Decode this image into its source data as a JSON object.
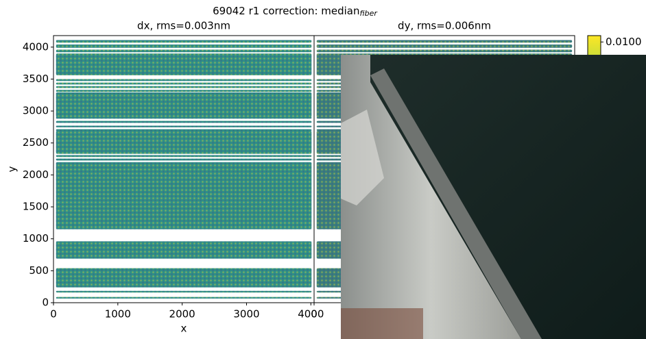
{
  "chart_data": {
    "type": "scatter",
    "title": "69042 r1  correction: median",
    "title_subscript": "fiber",
    "ylabel": "y",
    "colorbar": {
      "clim": [
        -0.0105,
        0.0105
      ],
      "ticks": [
        {
          "value": 0.01,
          "label": "0.0100"
        }
      ],
      "colors": [
        "#440154",
        "#3b528b",
        "#21918c",
        "#5ec962",
        "#fde725"
      ]
    },
    "panels": [
      {
        "title": "dx, rms=0.003nm",
        "xlabel": "x",
        "xlim": [
          0,
          4050
        ],
        "ylim": [
          0,
          4180
        ],
        "xticks": [
          0,
          1000,
          2000,
          3000,
          4000
        ],
        "yticks": [
          0,
          500,
          1000,
          1500,
          2000,
          2500,
          3000,
          3500,
          4000
        ],
        "color": "#2f8f86",
        "x_extent": [
          40,
          4010
        ],
        "row_bands": [
          [
            4070,
            4110
          ],
          [
            3990,
            4040
          ],
          [
            3920,
            3960
          ],
          [
            3560,
            3900
          ],
          [
            3470,
            3500
          ],
          [
            3415,
            3445
          ],
          [
            3360,
            3390
          ],
          [
            3300,
            3330
          ],
          [
            2900,
            3290
          ],
          [
            2880,
            2910
          ],
          [
            2815,
            2845
          ],
          [
            2745,
            2770
          ],
          [
            2690,
            2715
          ],
          [
            2330,
            2690
          ],
          [
            2280,
            2310
          ],
          [
            2225,
            2255
          ],
          [
            1150,
            2200
          ],
          [
            690,
            960
          ],
          [
            240,
            540
          ],
          [
            160,
            185
          ],
          [
            65,
            90
          ]
        ]
      },
      {
        "title": "dy, rms=0.006nm",
        "xlim": [
          0,
          4050
        ],
        "ylim": [
          0,
          4180
        ],
        "xticks": [
          0
        ],
        "color": "#3a7f7c",
        "x_extent": [
          40,
          4010
        ],
        "row_bands": [
          [
            4070,
            4110
          ],
          [
            3990,
            4040
          ],
          [
            3920,
            3960
          ],
          [
            3560,
            3900
          ],
          [
            3470,
            3500
          ],
          [
            3415,
            3445
          ],
          [
            3360,
            3390
          ],
          [
            3300,
            3330
          ],
          [
            2900,
            3290
          ],
          [
            2880,
            2910
          ],
          [
            2815,
            2845
          ],
          [
            2745,
            2770
          ],
          [
            2690,
            2715
          ],
          [
            2330,
            2690
          ],
          [
            2280,
            2310
          ],
          [
            2225,
            2255
          ],
          [
            1150,
            2200
          ],
          [
            690,
            960
          ],
          [
            240,
            540
          ],
          [
            160,
            185
          ],
          [
            65,
            90
          ]
        ]
      }
    ]
  }
}
